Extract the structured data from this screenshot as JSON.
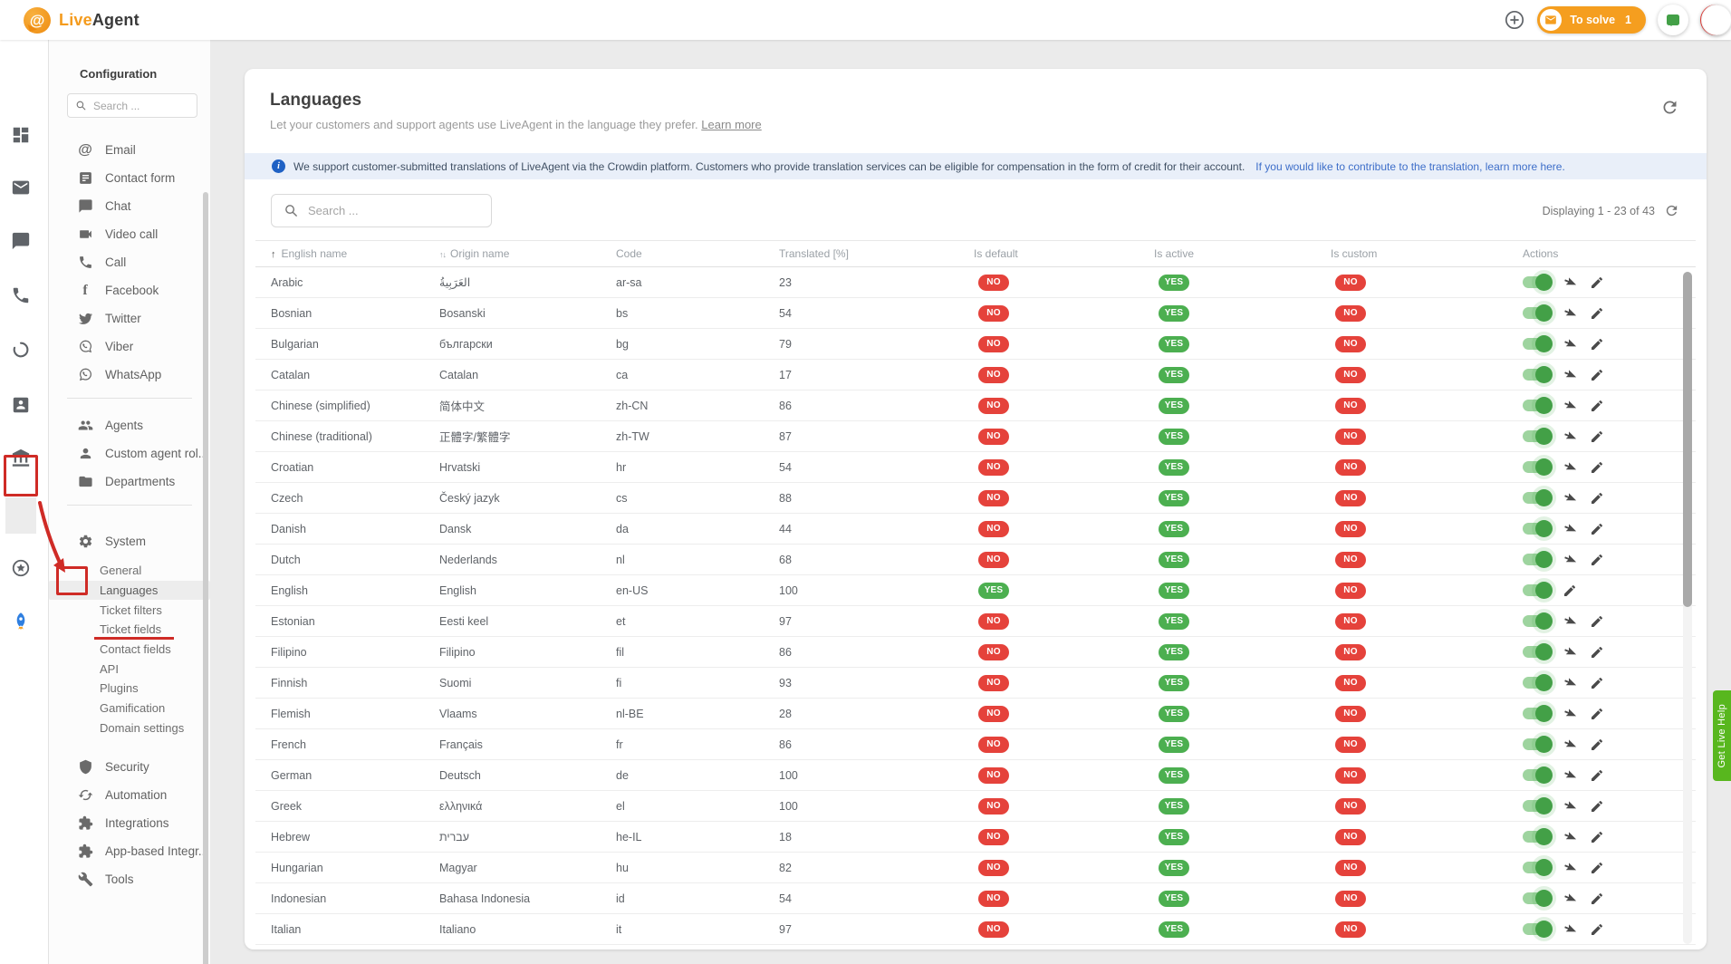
{
  "topbar": {
    "logo_live": "Live",
    "logo_agent": "Agent",
    "to_solve_label": "To solve",
    "to_solve_count": "1"
  },
  "rail": {
    "items": [
      "dashboard",
      "mail",
      "chat",
      "phone",
      "history",
      "contacts",
      "portal",
      "settings",
      "star",
      "rocket"
    ]
  },
  "config": {
    "title": "Configuration",
    "search_placeholder": "Search ...",
    "channels": [
      {
        "icon": "at",
        "label": "Email"
      },
      {
        "icon": "form",
        "label": "Contact form"
      },
      {
        "icon": "chat",
        "label": "Chat"
      },
      {
        "icon": "video",
        "label": "Video call"
      },
      {
        "icon": "phone",
        "label": "Call"
      },
      {
        "icon": "facebook",
        "label": "Facebook"
      },
      {
        "icon": "twitter",
        "label": "Twitter"
      },
      {
        "icon": "viber",
        "label": "Viber"
      },
      {
        "icon": "whatsapp",
        "label": "WhatsApp"
      }
    ],
    "people": [
      {
        "icon": "people",
        "label": "Agents"
      },
      {
        "icon": "person",
        "label": "Custom agent rol..."
      },
      {
        "icon": "folder",
        "label": "Departments"
      }
    ],
    "system": {
      "icon": "gear",
      "label": "System",
      "subitems": [
        {
          "label": "General",
          "active": false
        },
        {
          "label": "Languages",
          "active": true
        },
        {
          "label": "Ticket filters",
          "active": false
        },
        {
          "label": "Ticket fields",
          "active": false
        },
        {
          "label": "Contact fields",
          "active": false
        },
        {
          "label": "API",
          "active": false
        },
        {
          "label": "Plugins",
          "active": false
        },
        {
          "label": "Gamification",
          "active": false
        },
        {
          "label": "Domain settings",
          "active": false
        }
      ]
    },
    "bottom": [
      {
        "icon": "shield",
        "label": "Security"
      },
      {
        "icon": "sync",
        "label": "Automation"
      },
      {
        "icon": "puzzle",
        "label": "Integrations"
      },
      {
        "icon": "puzzle",
        "label": "App-based Integr..."
      },
      {
        "icon": "wrench",
        "label": "Tools"
      }
    ]
  },
  "main": {
    "title": "Languages",
    "subtitle": "Let your customers and support agents use LiveAgent in the language they prefer.",
    "learn_more": "Learn more",
    "banner": {
      "text": "We support customer-submitted translations of LiveAgent via the Crowdin platform. Customers who provide translation services can be eligible for compensation in the form of credit for their account.",
      "link": "If you would like to contribute to the translation, learn more here."
    },
    "search_placeholder": "Search ...",
    "paging": "Displaying 1 - 23 of 43",
    "table": {
      "headers": {
        "english": "English name",
        "origin": "Origin name",
        "code": "Code",
        "translated": "Translated [%]",
        "is_default": "Is default",
        "is_active": "Is active",
        "is_custom": "Is custom",
        "actions": "Actions"
      },
      "rows": [
        {
          "english": "Arabic",
          "origin": "العَرَبِيةُ",
          "code": "ar-sa",
          "translated": "23",
          "is_default": "NO",
          "is_active": "YES",
          "is_custom": "NO",
          "download_action": true
        },
        {
          "english": "Bosnian",
          "origin": "Bosanski",
          "code": "bs",
          "translated": "54",
          "is_default": "NO",
          "is_active": "YES",
          "is_custom": "NO",
          "download_action": true
        },
        {
          "english": "Bulgarian",
          "origin": "български",
          "code": "bg",
          "translated": "79",
          "is_default": "NO",
          "is_active": "YES",
          "is_custom": "NO",
          "download_action": true
        },
        {
          "english": "Catalan",
          "origin": "Catalan",
          "code": "ca",
          "translated": "17",
          "is_default": "NO",
          "is_active": "YES",
          "is_custom": "NO",
          "download_action": true
        },
        {
          "english": "Chinese (simplified)",
          "origin": "简体中文",
          "code": "zh-CN",
          "translated": "86",
          "is_default": "NO",
          "is_active": "YES",
          "is_custom": "NO",
          "download_action": true
        },
        {
          "english": "Chinese (traditional)",
          "origin": "正體字/繁體字",
          "code": "zh-TW",
          "translated": "87",
          "is_default": "NO",
          "is_active": "YES",
          "is_custom": "NO",
          "download_action": true
        },
        {
          "english": "Croatian",
          "origin": "Hrvatski",
          "code": "hr",
          "translated": "54",
          "is_default": "NO",
          "is_active": "YES",
          "is_custom": "NO",
          "download_action": true
        },
        {
          "english": "Czech",
          "origin": "Český jazyk",
          "code": "cs",
          "translated": "88",
          "is_default": "NO",
          "is_active": "YES",
          "is_custom": "NO",
          "download_action": true
        },
        {
          "english": "Danish",
          "origin": "Dansk",
          "code": "da",
          "translated": "44",
          "is_default": "NO",
          "is_active": "YES",
          "is_custom": "NO",
          "download_action": true
        },
        {
          "english": "Dutch",
          "origin": "Nederlands",
          "code": "nl",
          "translated": "68",
          "is_default": "NO",
          "is_active": "YES",
          "is_custom": "NO",
          "download_action": true
        },
        {
          "english": "English",
          "origin": "English",
          "code": "en-US",
          "translated": "100",
          "is_default": "YES",
          "is_active": "YES",
          "is_custom": "NO",
          "download_action": false
        },
        {
          "english": "Estonian",
          "origin": "Eesti keel",
          "code": "et",
          "translated": "97",
          "is_default": "NO",
          "is_active": "YES",
          "is_custom": "NO",
          "download_action": true
        },
        {
          "english": "Filipino",
          "origin": "Filipino",
          "code": "fil",
          "translated": "86",
          "is_default": "NO",
          "is_active": "YES",
          "is_custom": "NO",
          "download_action": true
        },
        {
          "english": "Finnish",
          "origin": "Suomi",
          "code": "fi",
          "translated": "93",
          "is_default": "NO",
          "is_active": "YES",
          "is_custom": "NO",
          "download_action": true
        },
        {
          "english": "Flemish",
          "origin": "Vlaams",
          "code": "nl-BE",
          "translated": "28",
          "is_default": "NO",
          "is_active": "YES",
          "is_custom": "NO",
          "download_action": true
        },
        {
          "english": "French",
          "origin": "Français",
          "code": "fr",
          "translated": "86",
          "is_default": "NO",
          "is_active": "YES",
          "is_custom": "NO",
          "download_action": true
        },
        {
          "english": "German",
          "origin": "Deutsch",
          "code": "de",
          "translated": "100",
          "is_default": "NO",
          "is_active": "YES",
          "is_custom": "NO",
          "download_action": true
        },
        {
          "english": "Greek",
          "origin": "ελληνικά",
          "code": "el",
          "translated": "100",
          "is_default": "NO",
          "is_active": "YES",
          "is_custom": "NO",
          "download_action": true
        },
        {
          "english": "Hebrew",
          "origin": "עברית",
          "code": "he-IL",
          "translated": "18",
          "is_default": "NO",
          "is_active": "YES",
          "is_custom": "NO",
          "download_action": true
        },
        {
          "english": "Hungarian",
          "origin": "Magyar",
          "code": "hu",
          "translated": "82",
          "is_default": "NO",
          "is_active": "YES",
          "is_custom": "NO",
          "download_action": true
        },
        {
          "english": "Indonesian",
          "origin": "Bahasa Indonesia",
          "code": "id",
          "translated": "54",
          "is_default": "NO",
          "is_active": "YES",
          "is_custom": "NO",
          "download_action": true
        },
        {
          "english": "Italian",
          "origin": "Italiano",
          "code": "it",
          "translated": "97",
          "is_default": "NO",
          "is_active": "YES",
          "is_custom": "NO",
          "download_action": true
        }
      ]
    }
  },
  "help_tab": "Get Live Help",
  "colors": {
    "accent_orange": "#F59E1F",
    "badge_red": "#E5423B",
    "badge_green": "#4CAF50",
    "toggle_green": "#43A047",
    "annotation_red": "#CF2B26",
    "link_blue": "#3D6EC9",
    "help_green": "#58B71E",
    "banner_bg": "#E9EFF9"
  }
}
